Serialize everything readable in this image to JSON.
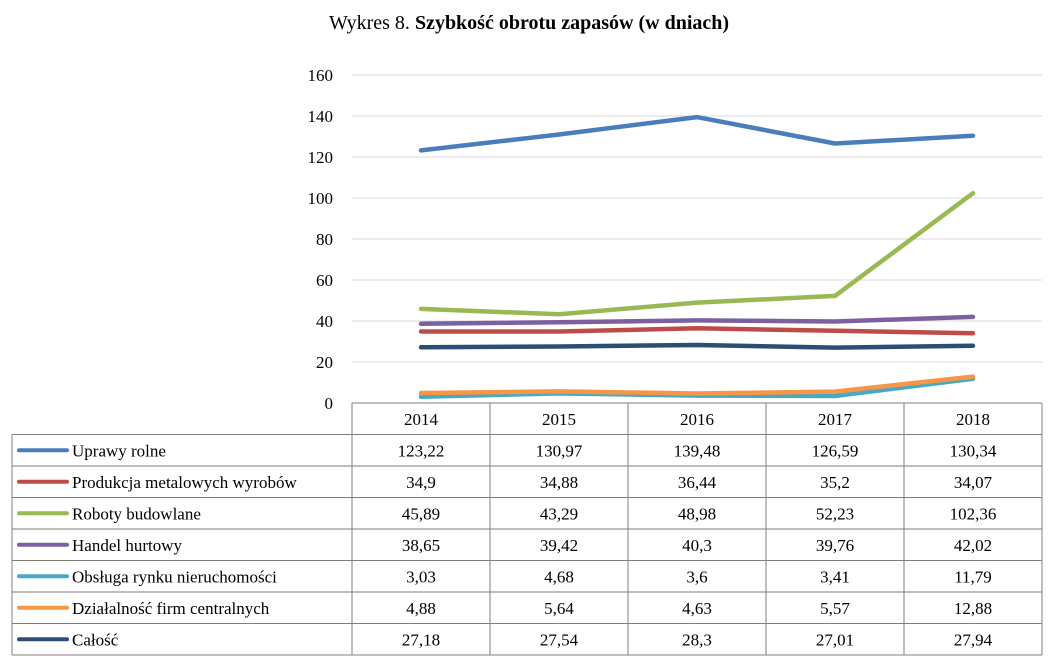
{
  "chart_data": {
    "type": "line",
    "title_prefix": "Wykres 8.",
    "title": "Szybkość obrotu zapasów (w dniach)",
    "categories": [
      "2014",
      "2015",
      "2016",
      "2017",
      "2018"
    ],
    "ylim": [
      0,
      160
    ],
    "yticks": [
      0,
      20,
      40,
      60,
      80,
      100,
      120,
      140,
      160
    ],
    "grid": true,
    "legend": "data-table",
    "series": [
      {
        "name": "Uprawy rolne",
        "color": "#4a7ebb",
        "values": [
          123.22,
          130.97,
          139.48,
          126.59,
          130.34
        ],
        "labels": [
          "123,22",
          "130,97",
          "139,48",
          "126,59",
          "130,34"
        ]
      },
      {
        "name": "Produkcja metalowych wyrobów",
        "color": "#be4b48",
        "values": [
          34.9,
          34.88,
          36.44,
          35.2,
          34.07
        ],
        "labels": [
          "34,9",
          "34,88",
          "36,44",
          "35,2",
          "34,07"
        ]
      },
      {
        "name": "Roboty budowlane",
        "color": "#98b954",
        "values": [
          45.89,
          43.29,
          48.98,
          52.23,
          102.36
        ],
        "labels": [
          "45,89",
          "43,29",
          "48,98",
          "52,23",
          "102,36"
        ]
      },
      {
        "name": "Handel hurtowy",
        "color": "#7d60a0",
        "values": [
          38.65,
          39.42,
          40.3,
          39.76,
          42.02
        ],
        "labels": [
          "38,65",
          "39,42",
          "40,3",
          "39,76",
          "42,02"
        ]
      },
      {
        "name": "Obsługa rynku nieruchomości",
        "color": "#46aac5",
        "values": [
          3.03,
          4.68,
          3.6,
          3.41,
          11.79
        ],
        "labels": [
          "3,03",
          "4,68",
          "3,6",
          "3,41",
          "11,79"
        ]
      },
      {
        "name": "Działalność firm centralnych",
        "color": "#f79646",
        "values": [
          4.88,
          5.64,
          4.63,
          5.57,
          12.88
        ],
        "labels": [
          "4,88",
          "5,64",
          "4,63",
          "5,57",
          "12,88"
        ]
      },
      {
        "name": "Całość",
        "color": "#2c4d75",
        "values": [
          27.18,
          27.54,
          28.3,
          27.01,
          27.94
        ],
        "labels": [
          "27,18",
          "27,54",
          "28,3",
          "27,01",
          "27,94"
        ]
      }
    ]
  }
}
